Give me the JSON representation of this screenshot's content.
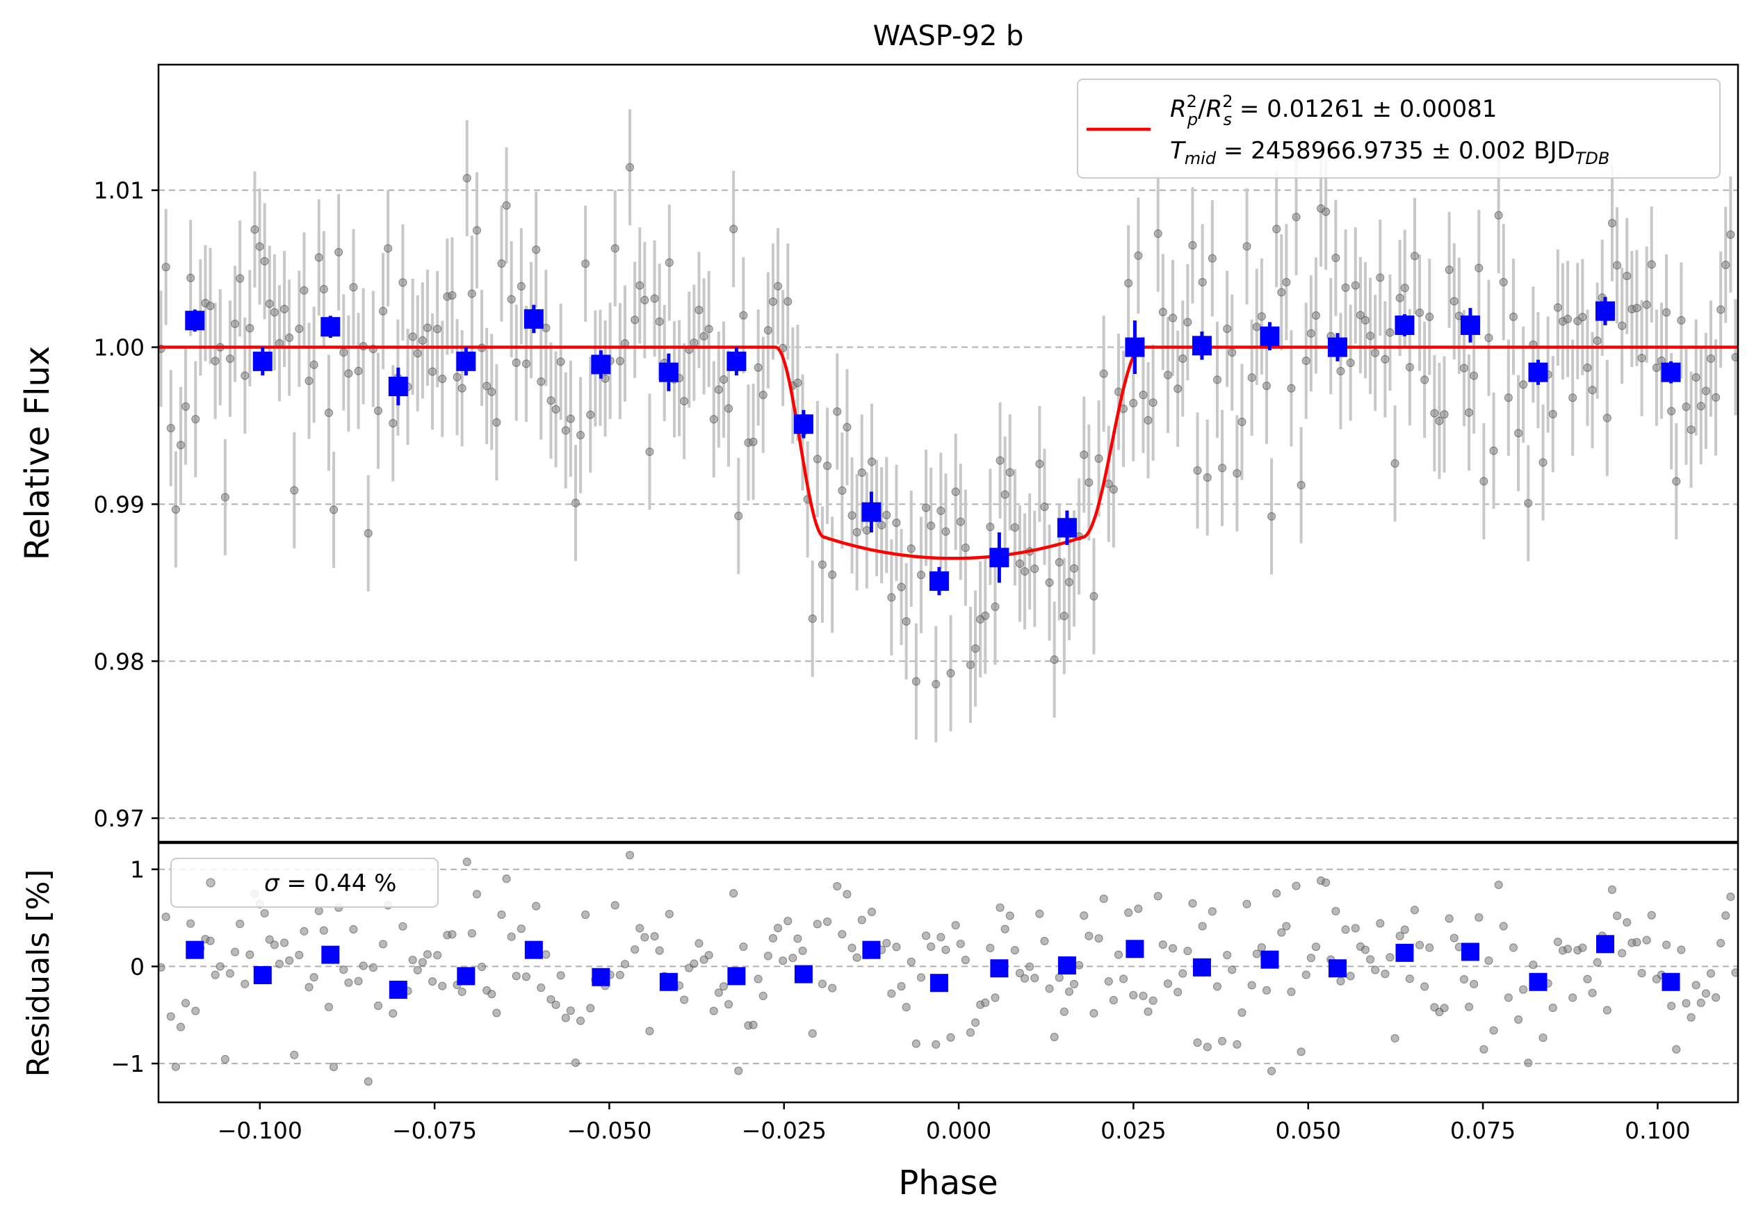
{
  "chart_data": {
    "type": "scatter",
    "title": "WASP-92 b",
    "xlabel": "Phase",
    "x_ticks": [
      -0.1,
      -0.075,
      -0.05,
      -0.025,
      0.0,
      0.025,
      0.05,
      0.075,
      0.1
    ],
    "x_tick_labels": [
      "−0.100",
      "−0.075",
      "−0.050",
      "−0.025",
      "0.000",
      "0.025",
      "0.050",
      "0.075",
      "0.100"
    ],
    "xlim": [
      -0.1145,
      0.1115
    ],
    "colors": {
      "model": "#ff0000",
      "binned": "#0000ff",
      "raw": "#808080",
      "errorbar": "#c8c8c8",
      "grid": "#b0b0b0"
    },
    "top_panel": {
      "ylabel": "Relative Flux",
      "ylim": [
        0.9685,
        1.018
      ],
      "y_ticks": [
        0.97,
        0.98,
        0.99,
        1.0,
        1.01
      ],
      "y_tick_labels": [
        "0.97",
        "0.98",
        "0.99",
        "1.00",
        "1.01"
      ],
      "grid": "horizontal dashed",
      "legend_position": "top-right",
      "legend": {
        "rp_rs_label": "R",
        "rp_rs_value": " = 0.01261 ± 0.00081",
        "tmid_label": "T",
        "tmid_value": " = 2458966.9735 ± 0.002 BJD"
      },
      "transit_model": {
        "name": "transit model",
        "baseline": 1.0,
        "depth_min": 0.98655,
        "t1": -0.0262,
        "t2": -0.0192,
        "t3": 0.0177,
        "t4": 0.0262
      },
      "binned_points": {
        "x": [
          -0.1093,
          -0.0996,
          -0.0899,
          -0.0802,
          -0.0705,
          -0.0608,
          -0.0512,
          -0.0415,
          -0.0318,
          -0.0222,
          -0.0125,
          -0.0028,
          0.0058,
          0.0155,
          0.0252,
          0.0348,
          0.0445,
          0.0542,
          0.0638,
          0.0732,
          0.0829,
          0.0925,
          0.1019
        ],
        "y": [
          1.0017,
          0.9991,
          1.0013,
          0.9975,
          0.9991,
          1.0018,
          0.9989,
          0.9984,
          0.9991,
          0.9951,
          0.9895,
          0.9851,
          0.9866,
          0.9885,
          1.0,
          1.0001,
          1.0007,
          1.0,
          1.0014,
          1.0014,
          0.9984,
          1.0023,
          0.9984
        ],
        "yerr": [
          0.0007,
          0.0009,
          0.0007,
          0.0012,
          0.0009,
          0.0009,
          0.0009,
          0.0012,
          0.0009,
          0.0009,
          0.0013,
          0.0009,
          0.0016,
          0.0011,
          0.0017,
          0.0009,
          0.0009,
          0.0009,
          0.0007,
          0.0011,
          0.0008,
          0.0009,
          0.0007
        ]
      },
      "raw_points": {
        "n": 320,
        "errorbar": 0.0037,
        "x_range": [
          -0.1145,
          0.1115
        ]
      }
    },
    "bottom_panel": {
      "ylabel": "Residuals [%]",
      "ylim": [
        -1.4,
        1.27
      ],
      "y_ticks": [
        -1,
        0,
        1
      ],
      "y_tick_labels": [
        "−1",
        "0",
        "1"
      ],
      "grid": "horizontal dashed",
      "legend_position": "top-left",
      "legend": {
        "sigma_label": "σ",
        "sigma_value": " = 0.44 %"
      },
      "sigma_percent": 0.44,
      "binned_residuals": {
        "x": [
          -0.1093,
          -0.0996,
          -0.0899,
          -0.0802,
          -0.0705,
          -0.0608,
          -0.0512,
          -0.0415,
          -0.0318,
          -0.0222,
          -0.0125,
          -0.0028,
          0.0058,
          0.0155,
          0.0252,
          0.0348,
          0.0445,
          0.0542,
          0.0638,
          0.0732,
          0.0829,
          0.0925,
          0.1019
        ],
        "y": [
          0.17,
          -0.09,
          0.12,
          -0.24,
          -0.1,
          0.17,
          -0.11,
          -0.16,
          -0.1,
          -0.08,
          0.17,
          -0.17,
          -0.02,
          0.01,
          0.18,
          -0.01,
          0.07,
          -0.02,
          0.14,
          0.15,
          -0.16,
          0.23,
          -0.16
        ]
      }
    }
  }
}
